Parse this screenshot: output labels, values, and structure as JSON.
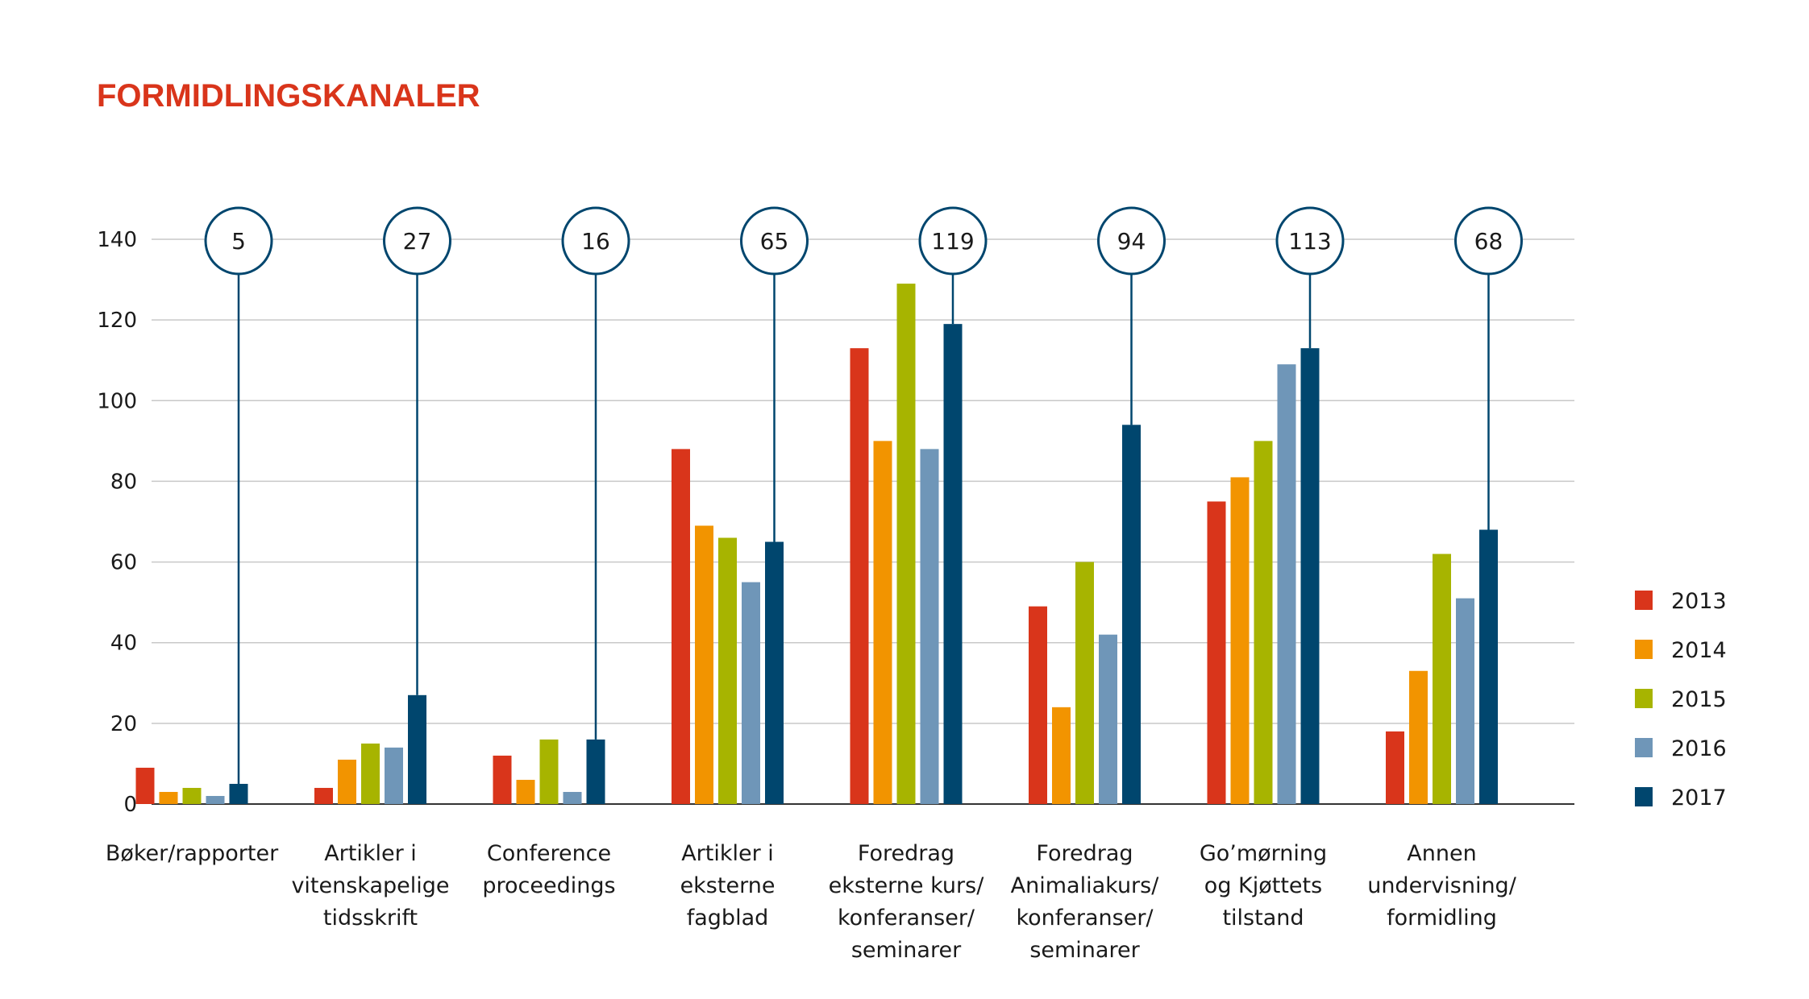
{
  "chart_data": {
    "type": "bar",
    "title": "FORMIDLINGSKANALER",
    "title_color": "#d9351b",
    "ylim": [
      0,
      140
    ],
    "yticks": [
      0,
      20,
      40,
      60,
      80,
      100,
      120,
      140
    ],
    "grid": true,
    "legend_position": "right",
    "categories": [
      [
        "Bøker/rapporter"
      ],
      [
        "Artikler i",
        "vitenskapelige",
        "tidsskrift"
      ],
      [
        "Conference",
        "proceedings"
      ],
      [
        "Artikler i",
        "eksterne",
        "fagblad"
      ],
      [
        "Foredrag",
        "eksterne kurs/",
        "konferanser/",
        "seminarer"
      ],
      [
        "Foredrag",
        "Animaliakurs/",
        "konferanser/",
        "seminarer"
      ],
      [
        "Go’mørning",
        "og Kjøttets",
        "tilstand"
      ],
      [
        "Annen",
        "undervisning/",
        "formidling"
      ]
    ],
    "series": [
      {
        "name": "2013",
        "color": "#d9351b",
        "values": [
          9,
          4,
          12,
          88,
          113,
          49,
          75,
          18
        ]
      },
      {
        "name": "2014",
        "color": "#f29400",
        "values": [
          3,
          11,
          6,
          69,
          90,
          24,
          81,
          33
        ]
      },
      {
        "name": "2015",
        "color": "#a7b400",
        "values": [
          4,
          15,
          16,
          66,
          129,
          60,
          90,
          62
        ]
      },
      {
        "name": "2016",
        "color": "#6f96b8",
        "values": [
          2,
          14,
          3,
          55,
          88,
          42,
          109,
          51
        ]
      },
      {
        "name": "2017",
        "color": "#00466e",
        "values": [
          5,
          27,
          16,
          65,
          119,
          94,
          113,
          68
        ]
      }
    ],
    "annotations": [
      "5",
      "27",
      "16",
      "65",
      "119",
      "94",
      "113",
      "68"
    ],
    "annotation_color": "#00466e"
  }
}
